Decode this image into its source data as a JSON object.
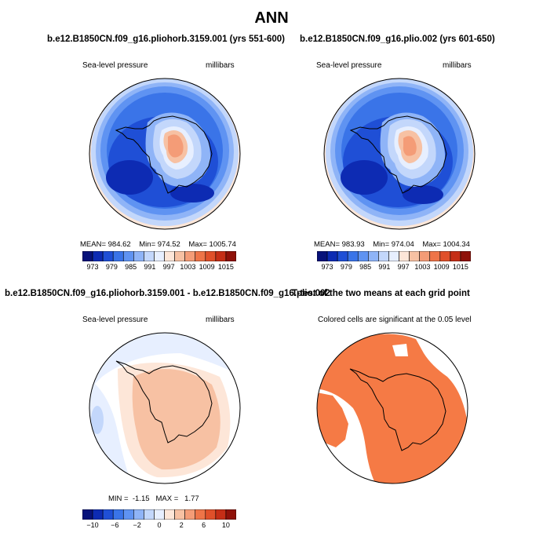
{
  "figure": {
    "title": "ANN"
  },
  "panels": [
    {
      "id": "p1",
      "title": "b.e12.B1850CN.f09_g16.pliohorb.3159.001 (yrs 551-600)",
      "left_label": "Sea-level pressure",
      "right_label": "millibars",
      "stats": {
        "mean_label": "MEAN=",
        "mean": "984.62",
        "min_label": "Min=",
        "min": "974.52",
        "max_label": "Max=",
        "max": "1005.74"
      },
      "colorbar_ticks": [
        "973",
        "979",
        "985",
        "991",
        "997",
        "1003",
        "1009",
        "1015"
      ]
    },
    {
      "id": "p2",
      "title": "b.e12.B1850CN.f09_g16.plio.002 (yrs 601-650)",
      "left_label": "Sea-level pressure",
      "right_label": "millibars",
      "stats": {
        "mean_label": "MEAN=",
        "mean": "983.93",
        "min_label": "Min=",
        "min": "974.04",
        "max_label": "Max=",
        "max": "1004.34"
      },
      "colorbar_ticks": [
        "973",
        "979",
        "985",
        "991",
        "997",
        "1003",
        "1009",
        "1015"
      ]
    },
    {
      "id": "p3",
      "title": "b.e12.B1850CN.f09_g16.pliohorb.3159.001 - b.e12.B1850CN.f09_g16.plio.002",
      "left_label": "Sea-level pressure",
      "right_label": "millibars",
      "stats": {
        "min_label": "MIN =",
        "min": "-1.15",
        "max_label": "MAX =",
        "max": "1.77"
      },
      "colorbar_ticks": [
        "−10",
        "−6",
        "−2",
        "0",
        "2",
        "6",
        "10"
      ]
    },
    {
      "id": "p4",
      "title": "T-test of the two means at each grid point",
      "subtitle": "Colored cells are significant at the 0.05 level"
    }
  ],
  "colors": {
    "slp_scale": [
      "#08127a",
      "#0d2bb3",
      "#1f4fd6",
      "#3a74e8",
      "#5f93f2",
      "#8fb4f7",
      "#c3d7fb",
      "#e7efff",
      "#fde6d8",
      "#f7c1a3",
      "#f49c77",
      "#ee7448",
      "#e0502a",
      "#c52e16",
      "#8f1109"
    ],
    "diff_scale": [
      "#08127a",
      "#0d2bb3",
      "#1f4fd6",
      "#3a74e8",
      "#5f93f2",
      "#8fb4f7",
      "#c3d7fb",
      "#e7efff",
      "#fde6d8",
      "#f7c1a3",
      "#f49c77",
      "#ee7448",
      "#e0502a",
      "#c52e16",
      "#8f1109"
    ],
    "significant": "#f57a45"
  }
}
